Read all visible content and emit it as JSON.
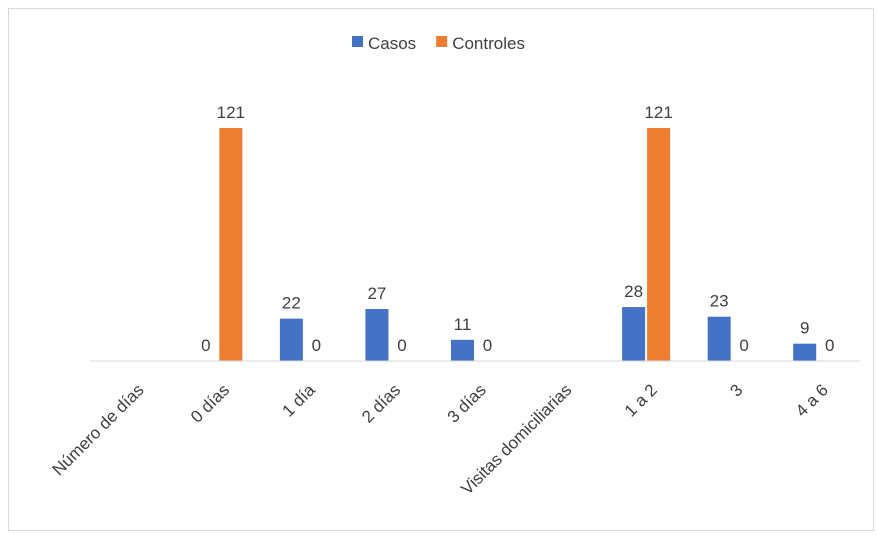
{
  "chart_data": {
    "type": "bar",
    "categories": [
      "Número de días",
      "0 días",
      "1 día",
      "2 días",
      "3 días",
      "Visitas domiciliarias",
      "1 a 2",
      "3",
      "4 a 6"
    ],
    "series": [
      {
        "name": "Casos",
        "color": "#4472C4",
        "values": [
          null,
          0,
          22,
          27,
          11,
          null,
          28,
          23,
          9
        ]
      },
      {
        "name": "Controles",
        "color": "#ED7D31",
        "values": [
          null,
          121,
          0,
          0,
          0,
          null,
          121,
          0,
          0
        ]
      }
    ],
    "data_labels": true,
    "legend_position": "top",
    "ylim": [
      0,
      121
    ],
    "y_axis_visible": false,
    "grid": false,
    "title": "",
    "xlabel": "",
    "ylabel": ""
  }
}
